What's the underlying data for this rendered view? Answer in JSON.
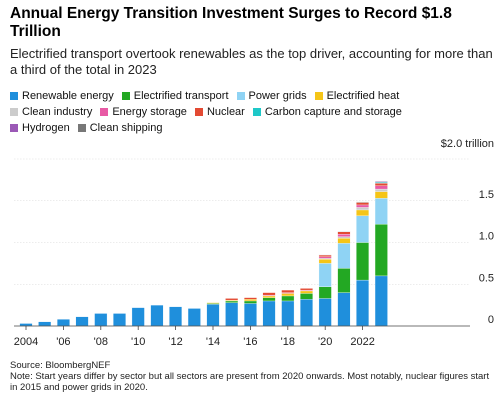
{
  "title": "Annual Energy Transition Investment Surges to Record $1.8 Trillion",
  "subtitle": "Electrified transport overtook renewables as the top driver, accounting for more than a third of the total in 2023",
  "source": "Source: BloombergNEF",
  "note": "Note: Start years differ by sector but all sectors are present from 2020 onwards. Most notably, nuclear figures start in 2015 and power grids in 2020.",
  "chart_data": {
    "type": "bar",
    "stacked": true,
    "x": [
      2004,
      2005,
      2006,
      2007,
      2008,
      2009,
      2010,
      2011,
      2012,
      2013,
      2014,
      2015,
      2016,
      2017,
      2018,
      2019,
      2020,
      2021,
      2022,
      2023
    ],
    "x_tick_labels": [
      "2004",
      "'06",
      "'08",
      "'10",
      "'12",
      "'14",
      "'16",
      "'18",
      "'20",
      "2022"
    ],
    "y_tick_labels": [
      "0",
      "0.5",
      "1.0",
      "1.5",
      "$2.0 trillion"
    ],
    "ylim": [
      0,
      2.0
    ],
    "grid": true,
    "legend_position": "top",
    "series": [
      {
        "name": "Renewable energy",
        "color": "#1f8fdc",
        "values": [
          0.03,
          0.05,
          0.08,
          0.11,
          0.15,
          0.15,
          0.22,
          0.25,
          0.23,
          0.21,
          0.26,
          0.28,
          0.27,
          0.3,
          0.3,
          0.32,
          0.33,
          0.4,
          0.55,
          0.6
        ]
      },
      {
        "name": "Electrified transport",
        "color": "#23a823",
        "values": [
          0,
          0,
          0,
          0,
          0,
          0,
          0,
          0,
          0,
          0,
          0.01,
          0.02,
          0.03,
          0.04,
          0.06,
          0.07,
          0.14,
          0.29,
          0.45,
          0.62
        ]
      },
      {
        "name": "Power grids",
        "color": "#8fd3f4",
        "values": [
          0,
          0,
          0,
          0,
          0,
          0,
          0,
          0,
          0,
          0,
          0,
          0,
          0,
          0,
          0,
          0,
          0.28,
          0.3,
          0.32,
          0.31
        ]
      },
      {
        "name": "Electrified heat",
        "color": "#f5c518",
        "values": [
          0,
          0,
          0,
          0,
          0,
          0,
          0,
          0,
          0,
          0,
          0.01,
          0.01,
          0.02,
          0.02,
          0.03,
          0.03,
          0.05,
          0.06,
          0.07,
          0.08
        ]
      },
      {
        "name": "Clean industry",
        "color": "#cccccc",
        "values": [
          0,
          0,
          0,
          0,
          0,
          0,
          0,
          0,
          0,
          0,
          0,
          0,
          0,
          0,
          0,
          0,
          0.01,
          0.02,
          0.03,
          0.03
        ]
      },
      {
        "name": "Energy storage",
        "color": "#e85aa5",
        "values": [
          0,
          0,
          0,
          0,
          0,
          0,
          0,
          0,
          0,
          0,
          0,
          0,
          0,
          0.01,
          0.01,
          0.01,
          0.02,
          0.03,
          0.03,
          0.04
        ]
      },
      {
        "name": "Nuclear",
        "color": "#e34a33",
        "values": [
          0,
          0,
          0,
          0,
          0,
          0,
          0,
          0,
          0,
          0,
          0,
          0.02,
          0.02,
          0.03,
          0.03,
          0.02,
          0.02,
          0.03,
          0.03,
          0.03
        ]
      },
      {
        "name": "Carbon capture and storage",
        "color": "#1ec8c8",
        "values": [
          0,
          0,
          0,
          0,
          0,
          0,
          0,
          0,
          0,
          0,
          0,
          0,
          0,
          0,
          0,
          0,
          0.003,
          0.003,
          0.006,
          0.011
        ]
      },
      {
        "name": "Hydrogen",
        "color": "#9b59b6",
        "values": [
          0,
          0,
          0,
          0,
          0,
          0,
          0,
          0,
          0,
          0,
          0,
          0,
          0,
          0,
          0,
          0,
          0.001,
          0.002,
          0.002,
          0.01
        ]
      },
      {
        "name": "Clean shipping",
        "color": "#777777",
        "values": [
          0,
          0,
          0,
          0,
          0,
          0,
          0,
          0,
          0,
          0,
          0,
          0,
          0,
          0,
          0,
          0,
          0,
          0.001,
          0.001,
          0.005
        ]
      }
    ]
  }
}
